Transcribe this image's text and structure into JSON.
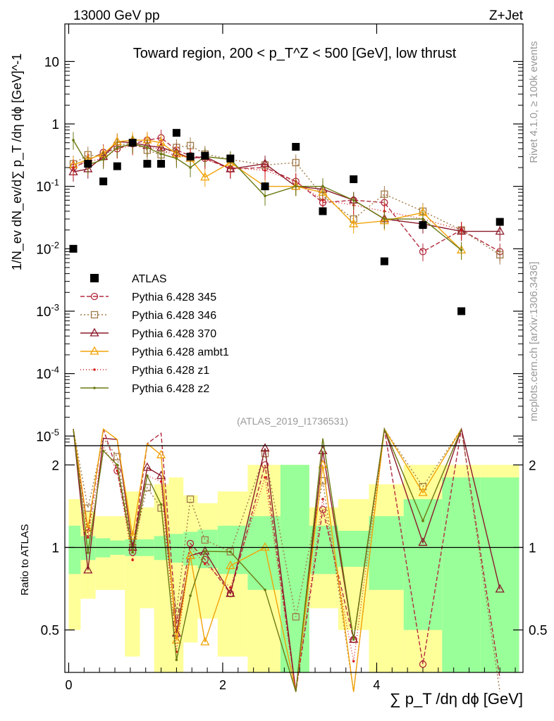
{
  "header": {
    "left": "13000 GeV pp",
    "right": "Z+Jet"
  },
  "side": {
    "rivet": "Rivet 4.1.0, ≥ 100k events",
    "mcplots": "mcplots.cern.ch [arXiv:1306.3436]"
  },
  "chart_data": {
    "type": "scatter",
    "title": "Toward region, 200 < p_T^Z < 500 [GeV], low thrust",
    "analysis_tag": "(ATLAS_2019_I1736531)",
    "xlabel": "∑ p_T /dη dϕ [GeV]",
    "ylabel_main": "1/N_ev dN_ev/d∑ p_T /dη dϕ [GeV]^-1",
    "ylabel_ratio": "Ratio to ATLAS",
    "xlim": [
      -0.05,
      5.9
    ],
    "ylim_main": [
      7e-06,
      40
    ],
    "ylim_ratio": [
      0.35,
      2.35
    ],
    "x_ticks": [
      "0",
      "2",
      "4"
    ],
    "y_ticks_main": [
      "10",
      "1",
      "10^-1",
      "10^-2",
      "10^-3",
      "10^-4",
      "10^-5"
    ],
    "y_ticks_ratio": [
      "0.5",
      "1",
      "2"
    ],
    "x": [
      0.06,
      0.25,
      0.45,
      0.63,
      0.83,
      1.02,
      1.2,
      1.4,
      1.58,
      1.77,
      2.1,
      2.55,
      2.95,
      3.3,
      3.7,
      4.1,
      4.6,
      5.1,
      5.6
    ],
    "atlas": [
      0.01,
      0.23,
      0.12,
      0.21,
      0.5,
      0.23,
      0.23,
      0.72,
      0.3,
      0.31,
      0.28,
      0.1,
      0.43,
      0.04,
      0.13,
      0.0063,
      0.024,
      0.001,
      0.027
    ],
    "band_inner": [
      0.2,
      0.1,
      0.08,
      0.06,
      0.07,
      0.07,
      0.1,
      0.12,
      0.14,
      0.16,
      0.2,
      0.3,
      1.0,
      0.2,
      0.15,
      0.3,
      0.5,
      0.8,
      0.8
    ],
    "band_outer": [
      0.5,
      0.35,
      0.3,
      0.3,
      0.6,
      0.4,
      0.7,
      0.8,
      0.55,
      0.45,
      0.6,
      1.0,
      1.0,
      0.4,
      0.5,
      0.7,
      1.0,
      1.0,
      1.0
    ],
    "series": [
      {
        "name": "Pythia 6.428 345",
        "color": "#b22a3f",
        "dash": "6,3",
        "marker": "circle",
        "values": [
          0.2,
          0.26,
          0.35,
          0.4,
          0.48,
          0.55,
          0.6,
          0.38,
          0.31,
          0.28,
          0.19,
          0.2,
          0.12,
          0.055,
          0.06,
          0.055,
          0.009,
          0.02,
          0.009
        ]
      },
      {
        "name": "Pythia 6.428 346",
        "color": "#a07a49",
        "dash": "2,3",
        "marker": "square",
        "values": [
          0.23,
          0.32,
          0.3,
          0.45,
          0.5,
          0.38,
          0.32,
          0.42,
          0.45,
          0.33,
          0.27,
          0.22,
          0.24,
          0.07,
          0.03,
          0.075,
          0.04,
          0.02,
          0.008
        ]
      },
      {
        "name": "Pythia 6.428 370",
        "color": "#8b1a2a",
        "dash": "",
        "marker": "triangle",
        "values": [
          0.17,
          0.19,
          0.3,
          0.52,
          0.5,
          0.45,
          0.42,
          0.35,
          0.28,
          0.3,
          0.19,
          0.23,
          0.1,
          0.09,
          0.06,
          0.03,
          0.025,
          0.019,
          0.019
        ]
      },
      {
        "name": "Pythia 6.428 ambt1",
        "color": "#f0a30a",
        "dash": "",
        "marker": "triangle",
        "values": [
          0.22,
          0.27,
          0.33,
          0.52,
          0.55,
          0.55,
          0.5,
          0.33,
          0.28,
          0.14,
          0.24,
          0.1,
          0.1,
          0.08,
          0.025,
          0.028,
          0.038,
          0.0095,
          null
        ]
      },
      {
        "name": "Pythia 6.428 z1",
        "color": "#d41e1e",
        "dash": "1,3",
        "marker": "dot",
        "values": [
          0.2,
          0.25,
          0.28,
          0.4,
          0.45,
          0.42,
          0.4,
          0.3,
          0.3,
          0.27,
          0.2,
          0.18,
          0.12,
          0.06,
          0.05,
          0.04,
          0.03,
          0.02,
          null
        ]
      },
      {
        "name": "Pythia 6.428 z2",
        "color": "#6b7a12",
        "dash": "",
        "marker": "dot",
        "values": [
          0.55,
          0.22,
          0.27,
          0.42,
          0.48,
          0.42,
          0.33,
          0.28,
          0.2,
          0.3,
          0.27,
          0.07,
          0.1,
          0.1,
          0.06,
          0.03,
          0.03,
          0.0095,
          null
        ]
      }
    ]
  }
}
